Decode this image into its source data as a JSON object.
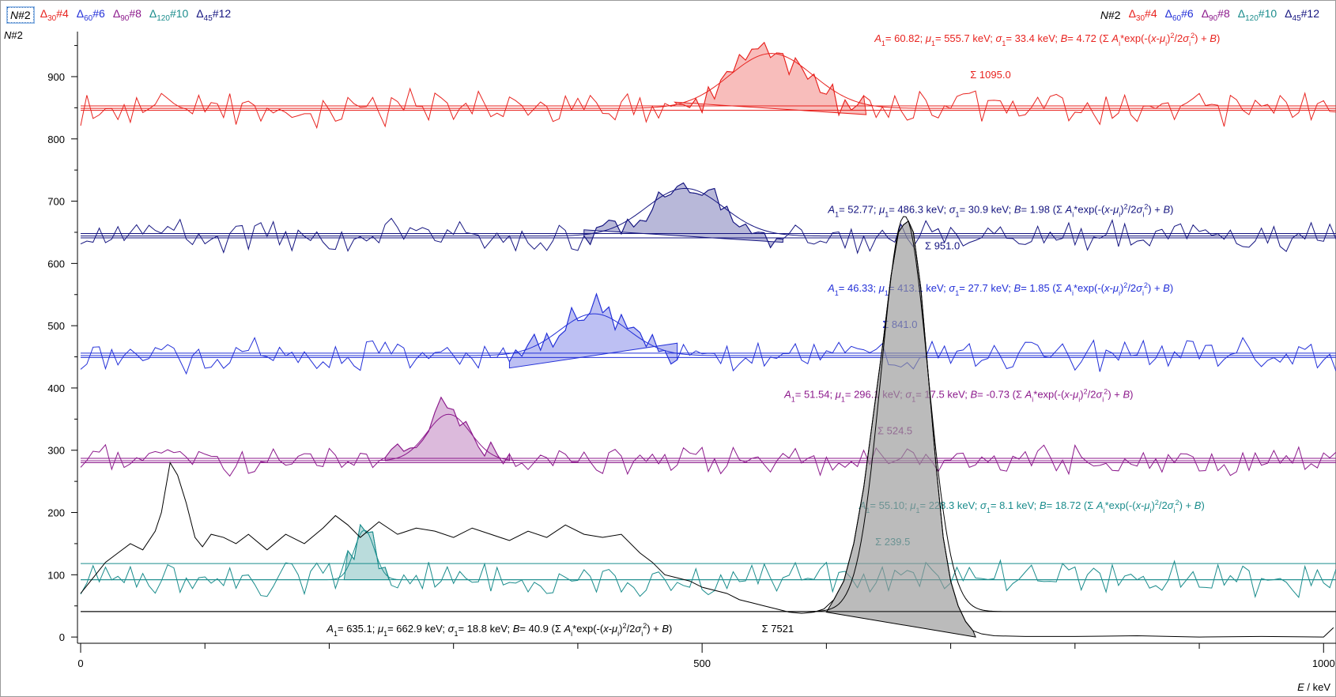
{
  "legend_left": [
    {
      "delta": "",
      "sub": "",
      "label": "N",
      "num": "#2",
      "color": "#000000",
      "active": true
    },
    {
      "delta": "Δ",
      "sub": "30",
      "label": "",
      "num": "#4",
      "color": "#e8231f"
    },
    {
      "delta": "Δ",
      "sub": "60",
      "label": "",
      "num": "#6",
      "color": "#2330d8"
    },
    {
      "delta": "Δ",
      "sub": "90",
      "label": "",
      "num": "#8",
      "color": "#8c1a8c"
    },
    {
      "delta": "Δ",
      "sub": "120",
      "label": "",
      "num": "#10",
      "color": "#1a8c8c"
    },
    {
      "delta": "Δ",
      "sub": "45",
      "label": "",
      "num": "#12",
      "color": "#151580"
    }
  ],
  "legend_right": [
    {
      "delta": "",
      "sub": "",
      "label": "N",
      "num": "#2",
      "color": "#000000"
    },
    {
      "delta": "Δ",
      "sub": "30",
      "label": "",
      "num": "#4",
      "color": "#e8231f"
    },
    {
      "delta": "Δ",
      "sub": "60",
      "label": "",
      "num": "#6",
      "color": "#2330d8"
    },
    {
      "delta": "Δ",
      "sub": "90",
      "label": "",
      "num": "#8",
      "color": "#8c1a8c"
    },
    {
      "delta": "Δ",
      "sub": "120",
      "label": "",
      "num": "#10",
      "color": "#1a8c8c"
    },
    {
      "delta": "Δ",
      "sub": "45",
      "label": "",
      "num": "#12",
      "color": "#151580"
    }
  ],
  "y_axis_title": "N#2",
  "x_axis_title": "E / keV",
  "chart_data": {
    "type": "line",
    "xlabel": "E / keV",
    "ylabel": "N#2",
    "xlim": [
      0,
      1010
    ],
    "ylim": [
      -10,
      985
    ],
    "x_ticks": [
      0,
      500,
      1000
    ],
    "x_minor_ticks": [
      100,
      200,
      300,
      400,
      600,
      700,
      800,
      900
    ],
    "y_ticks": [
      0,
      100,
      200,
      300,
      400,
      500,
      600,
      700,
      800,
      900
    ],
    "grid": false,
    "series": [
      {
        "name": "Δ30#4",
        "color": "#e8231f",
        "baseline": 849,
        "noise": 24,
        "fit": {
          "A": 60.82,
          "mu": 555.7,
          "sigma": 33.4,
          "B": 4.72
        },
        "roi": [
          478,
          632
        ],
        "line_slope": 0.05,
        "fit_text": {
          "A": "60.82",
          "mu": "555.7",
          "sigma": "33.4",
          "B": "4.72",
          "sum": "1095.0"
        }
      },
      {
        "name": "Δ45#12",
        "color": "#151580",
        "baseline": 644,
        "noise": 20,
        "fit": {
          "A": 52.77,
          "mu": 486.3,
          "sigma": 30.9,
          "B": 1.98
        },
        "roi": [
          405,
          565
        ],
        "line_slope": 0.05,
        "fit_text": {
          "A": "52.77",
          "mu": "486.3",
          "sigma": "30.9",
          "B": "1.98",
          "sum": "951.0"
        }
      },
      {
        "name": "Δ60#6",
        "color": "#2330d8",
        "baseline": 452,
        "noise": 20,
        "fit": {
          "A": 46.33,
          "mu": 413.1,
          "sigma": 27.7,
          "B": 1.85
        },
        "roi": [
          345,
          480
        ],
        "line_slope": -0.1,
        "fit_text": {
          "A": "46.33",
          "mu": "413.1",
          "sigma": "27.7",
          "B": "1.85",
          "sum": "841.0"
        }
      },
      {
        "name": "Δ90#8",
        "color": "#8c1a8c",
        "baseline": 283,
        "noise": 18,
        "fit": {
          "A": 51.54,
          "mu": 296.1,
          "sigma": 17.5,
          "B": -0.73
        },
        "roi": [
          245,
          345
        ],
        "line_slope": 0,
        "fit_text": {
          "A": "51.54",
          "mu": "296.1",
          "sigma": "17.5",
          "B": "-0.73",
          "sum": "524.5"
        }
      },
      {
        "name": "Δ120#10",
        "color": "#1a8c8c",
        "baseline": 92,
        "noise": 22,
        "fit": {
          "A": 55.1,
          "mu": 228.3,
          "sigma": 8.1,
          "B": 18.72
        },
        "roi": [
          212,
          248
        ],
        "line_slope": 0,
        "fit_text": {
          "A": "55.10",
          "mu": "228.3",
          "sigma": "8.1",
          "B": "18.72",
          "sum": "239.5"
        }
      },
      {
        "name": "N#2",
        "color": "#000000",
        "baseline": 40,
        "fit": {
          "A": 635.1,
          "mu": 662.9,
          "sigma": 18.8,
          "B": 40.9
        },
        "roi": [
          600,
          720
        ],
        "roi_line": [
          [
            600,
            40
          ],
          [
            720,
            0
          ]
        ],
        "points": [
          [
            0,
            70
          ],
          [
            10,
            95
          ],
          [
            20,
            120
          ],
          [
            30,
            135
          ],
          [
            40,
            150
          ],
          [
            50,
            140
          ],
          [
            60,
            170
          ],
          [
            65,
            200
          ],
          [
            72,
            280
          ],
          [
            78,
            260
          ],
          [
            85,
            215
          ],
          [
            92,
            160
          ],
          [
            98,
            145
          ],
          [
            105,
            165
          ],
          [
            115,
            160
          ],
          [
            125,
            150
          ],
          [
            135,
            165
          ],
          [
            150,
            140
          ],
          [
            165,
            165
          ],
          [
            180,
            150
          ],
          [
            195,
            175
          ],
          [
            205,
            195
          ],
          [
            215,
            180
          ],
          [
            225,
            160
          ],
          [
            240,
            185
          ],
          [
            255,
            165
          ],
          [
            270,
            175
          ],
          [
            285,
            170
          ],
          [
            300,
            160
          ],
          [
            315,
            175
          ],
          [
            330,
            165
          ],
          [
            345,
            155
          ],
          [
            360,
            170
          ],
          [
            375,
            160
          ],
          [
            390,
            180
          ],
          [
            405,
            165
          ],
          [
            420,
            160
          ],
          [
            435,
            165
          ],
          [
            450,
            135
          ],
          [
            460,
            120
          ],
          [
            470,
            100
          ],
          [
            480,
            95
          ],
          [
            490,
            90
          ],
          [
            500,
            80
          ],
          [
            510,
            75
          ],
          [
            520,
            70
          ],
          [
            530,
            60
          ],
          [
            540,
            55
          ],
          [
            550,
            50
          ],
          [
            560,
            45
          ],
          [
            570,
            40
          ],
          [
            580,
            38
          ],
          [
            590,
            40
          ],
          [
            598,
            45
          ],
          [
            606,
            60
          ],
          [
            614,
            90
          ],
          [
            622,
            150
          ],
          [
            630,
            240
          ],
          [
            638,
            360
          ],
          [
            646,
            480
          ],
          [
            652,
            580
          ],
          [
            658,
            650
          ],
          [
            662,
            662
          ],
          [
            666,
            668
          ],
          [
            670,
            650
          ],
          [
            676,
            560
          ],
          [
            682,
            420
          ],
          [
            688,
            280
          ],
          [
            694,
            160
          ],
          [
            700,
            90
          ],
          [
            706,
            50
          ],
          [
            712,
            25
          ],
          [
            718,
            10
          ],
          [
            725,
            5
          ],
          [
            735,
            2
          ],
          [
            760,
            1
          ],
          [
            800,
            1
          ],
          [
            850,
            2
          ],
          [
            900,
            0
          ],
          [
            950,
            1
          ],
          [
            1000,
            0
          ],
          [
            1008,
            15
          ]
        ],
        "fit_text": {
          "A": "635.1",
          "mu": "662.9",
          "sigma": "18.8",
          "B": "40.9",
          "sum": "7521"
        }
      }
    ]
  },
  "formula": "(Σ Ai*exp(-(x-μi)²/2σi²) + B)"
}
